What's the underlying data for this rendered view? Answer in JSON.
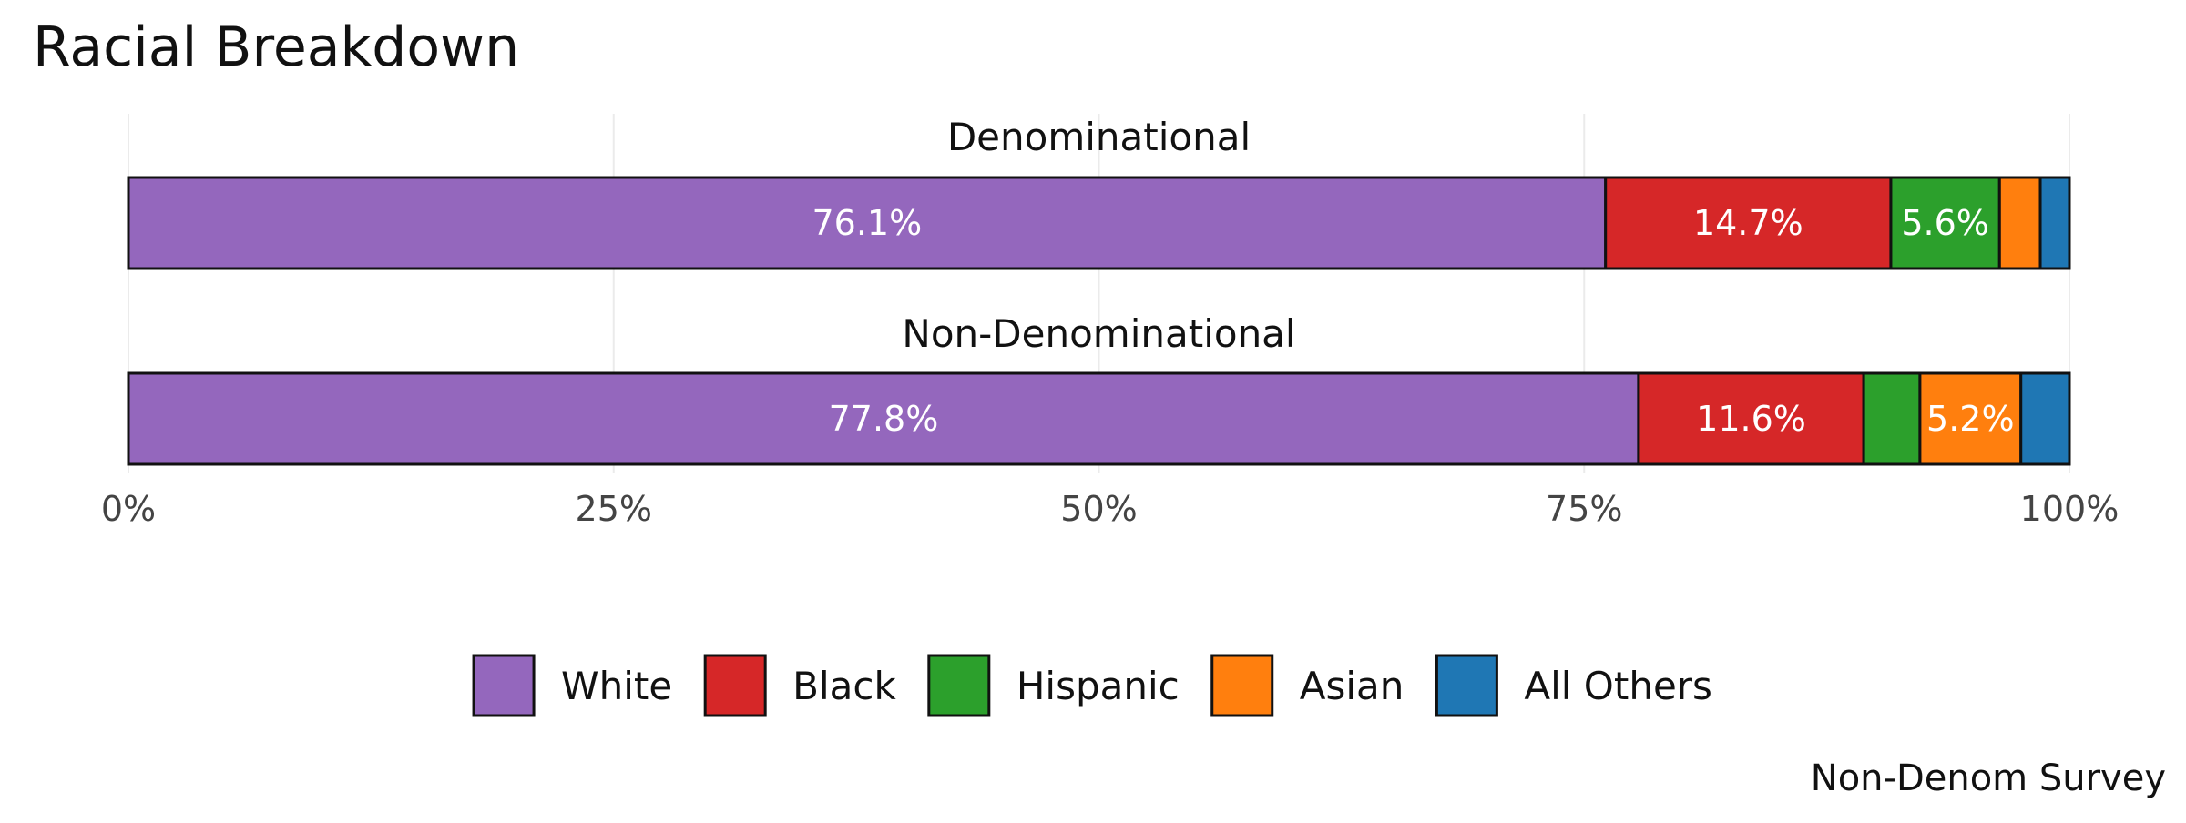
{
  "chart_data": {
    "type": "bar",
    "orientation": "horizontal",
    "stacked": true,
    "title": "Racial Breakdown",
    "caption": "Non-Denom Survey",
    "categories": [
      "Denominational",
      "Non-Denominational"
    ],
    "series": [
      {
        "name": "White",
        "color": "#9467bd",
        "values": [
          76.1,
          77.8
        ]
      },
      {
        "name": "Black",
        "color": "#d62728",
        "values": [
          14.7,
          11.6
        ]
      },
      {
        "name": "Hispanic",
        "color": "#2ca02c",
        "values": [
          5.6,
          2.9
        ]
      },
      {
        "name": "Asian",
        "color": "#ff7f0e",
        "values": [
          2.1,
          5.2
        ]
      },
      {
        "name": "All Others",
        "color": "#1f77b4",
        "values": [
          1.5,
          2.5
        ]
      }
    ],
    "data_labels": [
      [
        "76.1%",
        "14.7%",
        "5.6%",
        "",
        ""
      ],
      [
        "77.8%",
        "11.6%",
        "",
        "5.2%",
        ""
      ]
    ],
    "xlim": [
      0,
      100
    ],
    "x_ticks": [
      0,
      25,
      50,
      75,
      100
    ],
    "x_tick_labels": [
      "0%",
      "25%",
      "50%",
      "75%",
      "100%"
    ],
    "grid": true,
    "legend_position": "bottom"
  }
}
